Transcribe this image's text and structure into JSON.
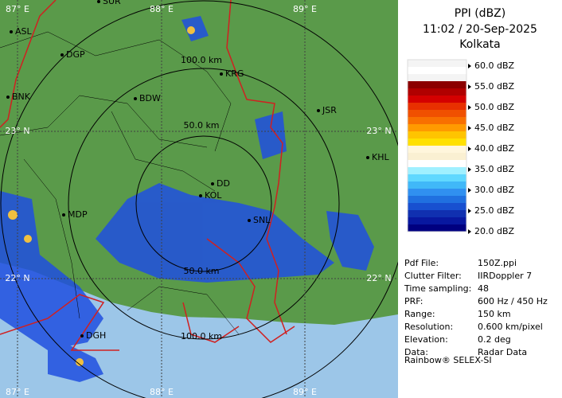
{
  "header": {
    "title": "PPI (dBZ)",
    "time": "11:02 / 20-Sep-2025",
    "station": "Kolkata"
  },
  "legend": {
    "labels": [
      "60.0 dBZ",
      "55.0 dBZ",
      "50.0 dBZ",
      "45.0 dBZ",
      "40.0 dBZ",
      "35.0 dBZ",
      "30.0 dBZ",
      "25.0 dBZ",
      "20.0 dBZ"
    ],
    "colors": [
      "#f4f4f4",
      "#ffffff",
      "#f4f4f4",
      "#8b0000",
      "#b00000",
      "#d40000",
      "#e83000",
      "#f05000",
      "#f87000",
      "#ff9a00",
      "#ffc400",
      "#ffe000",
      "#fff6dc",
      "#faf0d2",
      "#ffffff",
      "#a0f0ff",
      "#60d8ff",
      "#40b8f8",
      "#3090f0",
      "#2070e0",
      "#1850d0",
      "#1030b0",
      "#0818a0",
      "#000080"
    ]
  },
  "info": {
    "rows": [
      [
        "Pdf File:",
        "150Z.ppi"
      ],
      [
        "Clutter Filter:",
        "IIRDoppler 7"
      ],
      [
        "Time sampling:",
        "48"
      ],
      [
        "PRF:",
        "600 Hz / 450 Hz"
      ],
      [
        "Range:",
        "150 km"
      ],
      [
        "Resolution:",
        "0.600 km/pixel"
      ],
      [
        "Elevation:",
        "0.2 deg"
      ],
      [
        "Data:",
        "Radar Data"
      ]
    ],
    "footer": "Rainbow® SELEX-SI"
  },
  "map": {
    "grid_labels": {
      "lon": [
        "87° E",
        "88° E",
        "89° E"
      ],
      "lat": [
        "23° N",
        "22° N"
      ],
      "lon_bottom": [
        "87° E",
        "88° E",
        "89° E"
      ]
    },
    "ring_labels": [
      "50.0 km",
      "100.0 km",
      "50.0 km",
      "100.0 km"
    ],
    "places": [
      "ASL",
      "DGP",
      "BNK",
      "KRG",
      "BDW",
      "JSR",
      "DD",
      "KOL",
      "MDP",
      "KHL",
      "SNL",
      "DGH",
      "SUR"
    ]
  }
}
